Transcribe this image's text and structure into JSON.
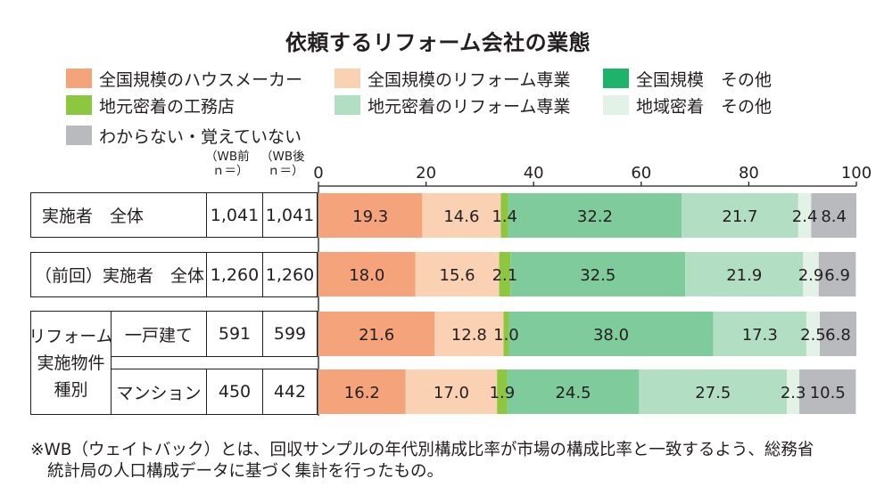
{
  "chart_data": {
    "type": "bar",
    "orientation": "horizontal",
    "stacked": true,
    "title": "依頼するリフォーム会社の業態",
    "xlim": [
      0,
      100
    ],
    "x_ticks": [
      "0",
      "20",
      "40",
      "60",
      "80",
      "100"
    ],
    "column_headers": [
      "（WB前\nｎ＝）",
      "（WB後\nｎ＝）"
    ],
    "legend_placement": "top",
    "categories": [
      "実施者　全体",
      "（前回）実施者　全体",
      "リフォーム実施物件種別 一戸建て",
      "リフォーム実施物件種別 マンション"
    ],
    "n_before": [
      "1,041",
      "1,260",
      "591",
      "450"
    ],
    "n_after": [
      "1,041",
      "1,260",
      "599",
      "442"
    ],
    "series": [
      {
        "name": "全国規模のハウスメーカー",
        "color": "#f5a37a",
        "values": [
          19.3,
          18.0,
          21.6,
          16.2
        ]
      },
      {
        "name": "全国規模のリフォーム専業",
        "color": "#fad1b3",
        "values": [
          14.6,
          15.6,
          12.8,
          17.0
        ]
      },
      {
        "name": "地元密着の工務店",
        "color": "#8dc63f",
        "values": [
          1.4,
          2.1,
          1.0,
          1.9
        ]
      },
      {
        "name": "地元密着のリフォーム専業",
        "color": "#7fcb9b",
        "values": [
          32.2,
          32.5,
          38.0,
          24.5
        ]
      },
      {
        "name": "地域密着　その他",
        "color": "#b2dfc3",
        "values": [
          21.7,
          21.9,
          17.3,
          27.5
        ]
      },
      {
        "name": "全国規模　その他",
        "color": "#e3f2e6",
        "values": [
          2.4,
          2.9,
          2.5,
          2.3
        ]
      },
      {
        "name": "わからない・覚えていない",
        "color": "#b9babd",
        "values": [
          8.4,
          6.9,
          6.8,
          10.5
        ]
      }
    ],
    "legend_extra": {
      "name": "全国規模　その他",
      "color": "#1db36a"
    }
  },
  "table": {
    "row1_label": "実施者　全体",
    "row2_label": "（前回）実施者　全体",
    "group_label_lines": [
      "リフォーム",
      "実施物件",
      "種別"
    ],
    "row3_label": "一戸建て",
    "row4_label": "マンション"
  },
  "headers": {
    "wb_before_1": "（WB前",
    "wb_before_2": "ｎ＝）",
    "wb_after_1": "（WB後",
    "wb_after_2": "ｎ＝）"
  },
  "legend": [
    {
      "label": "全国規模のハウスメーカー",
      "color": "#f5a37a"
    },
    {
      "label": "全国規模のリフォーム専業",
      "color": "#fad1b3"
    },
    {
      "label": "全国規模　その他",
      "color": "#1db36a"
    },
    {
      "label": "地元密着の工務店",
      "color": "#8dc63f"
    },
    {
      "label": "地元密着のリフォーム専業",
      "color": "#b2dfc3"
    },
    {
      "label": "地域密着　その他",
      "color": "#e3f2e6"
    },
    {
      "label": "わからない・覚えていない",
      "color": "#b9babd"
    }
  ],
  "note": {
    "line1": "※WB（ウェイトバック）とは、回収サンプルの年代別構成比率が市場の構成比率と一致するよう、総務省",
    "line2": "統計局の人口構成データに基づく集計を行ったもの。"
  }
}
